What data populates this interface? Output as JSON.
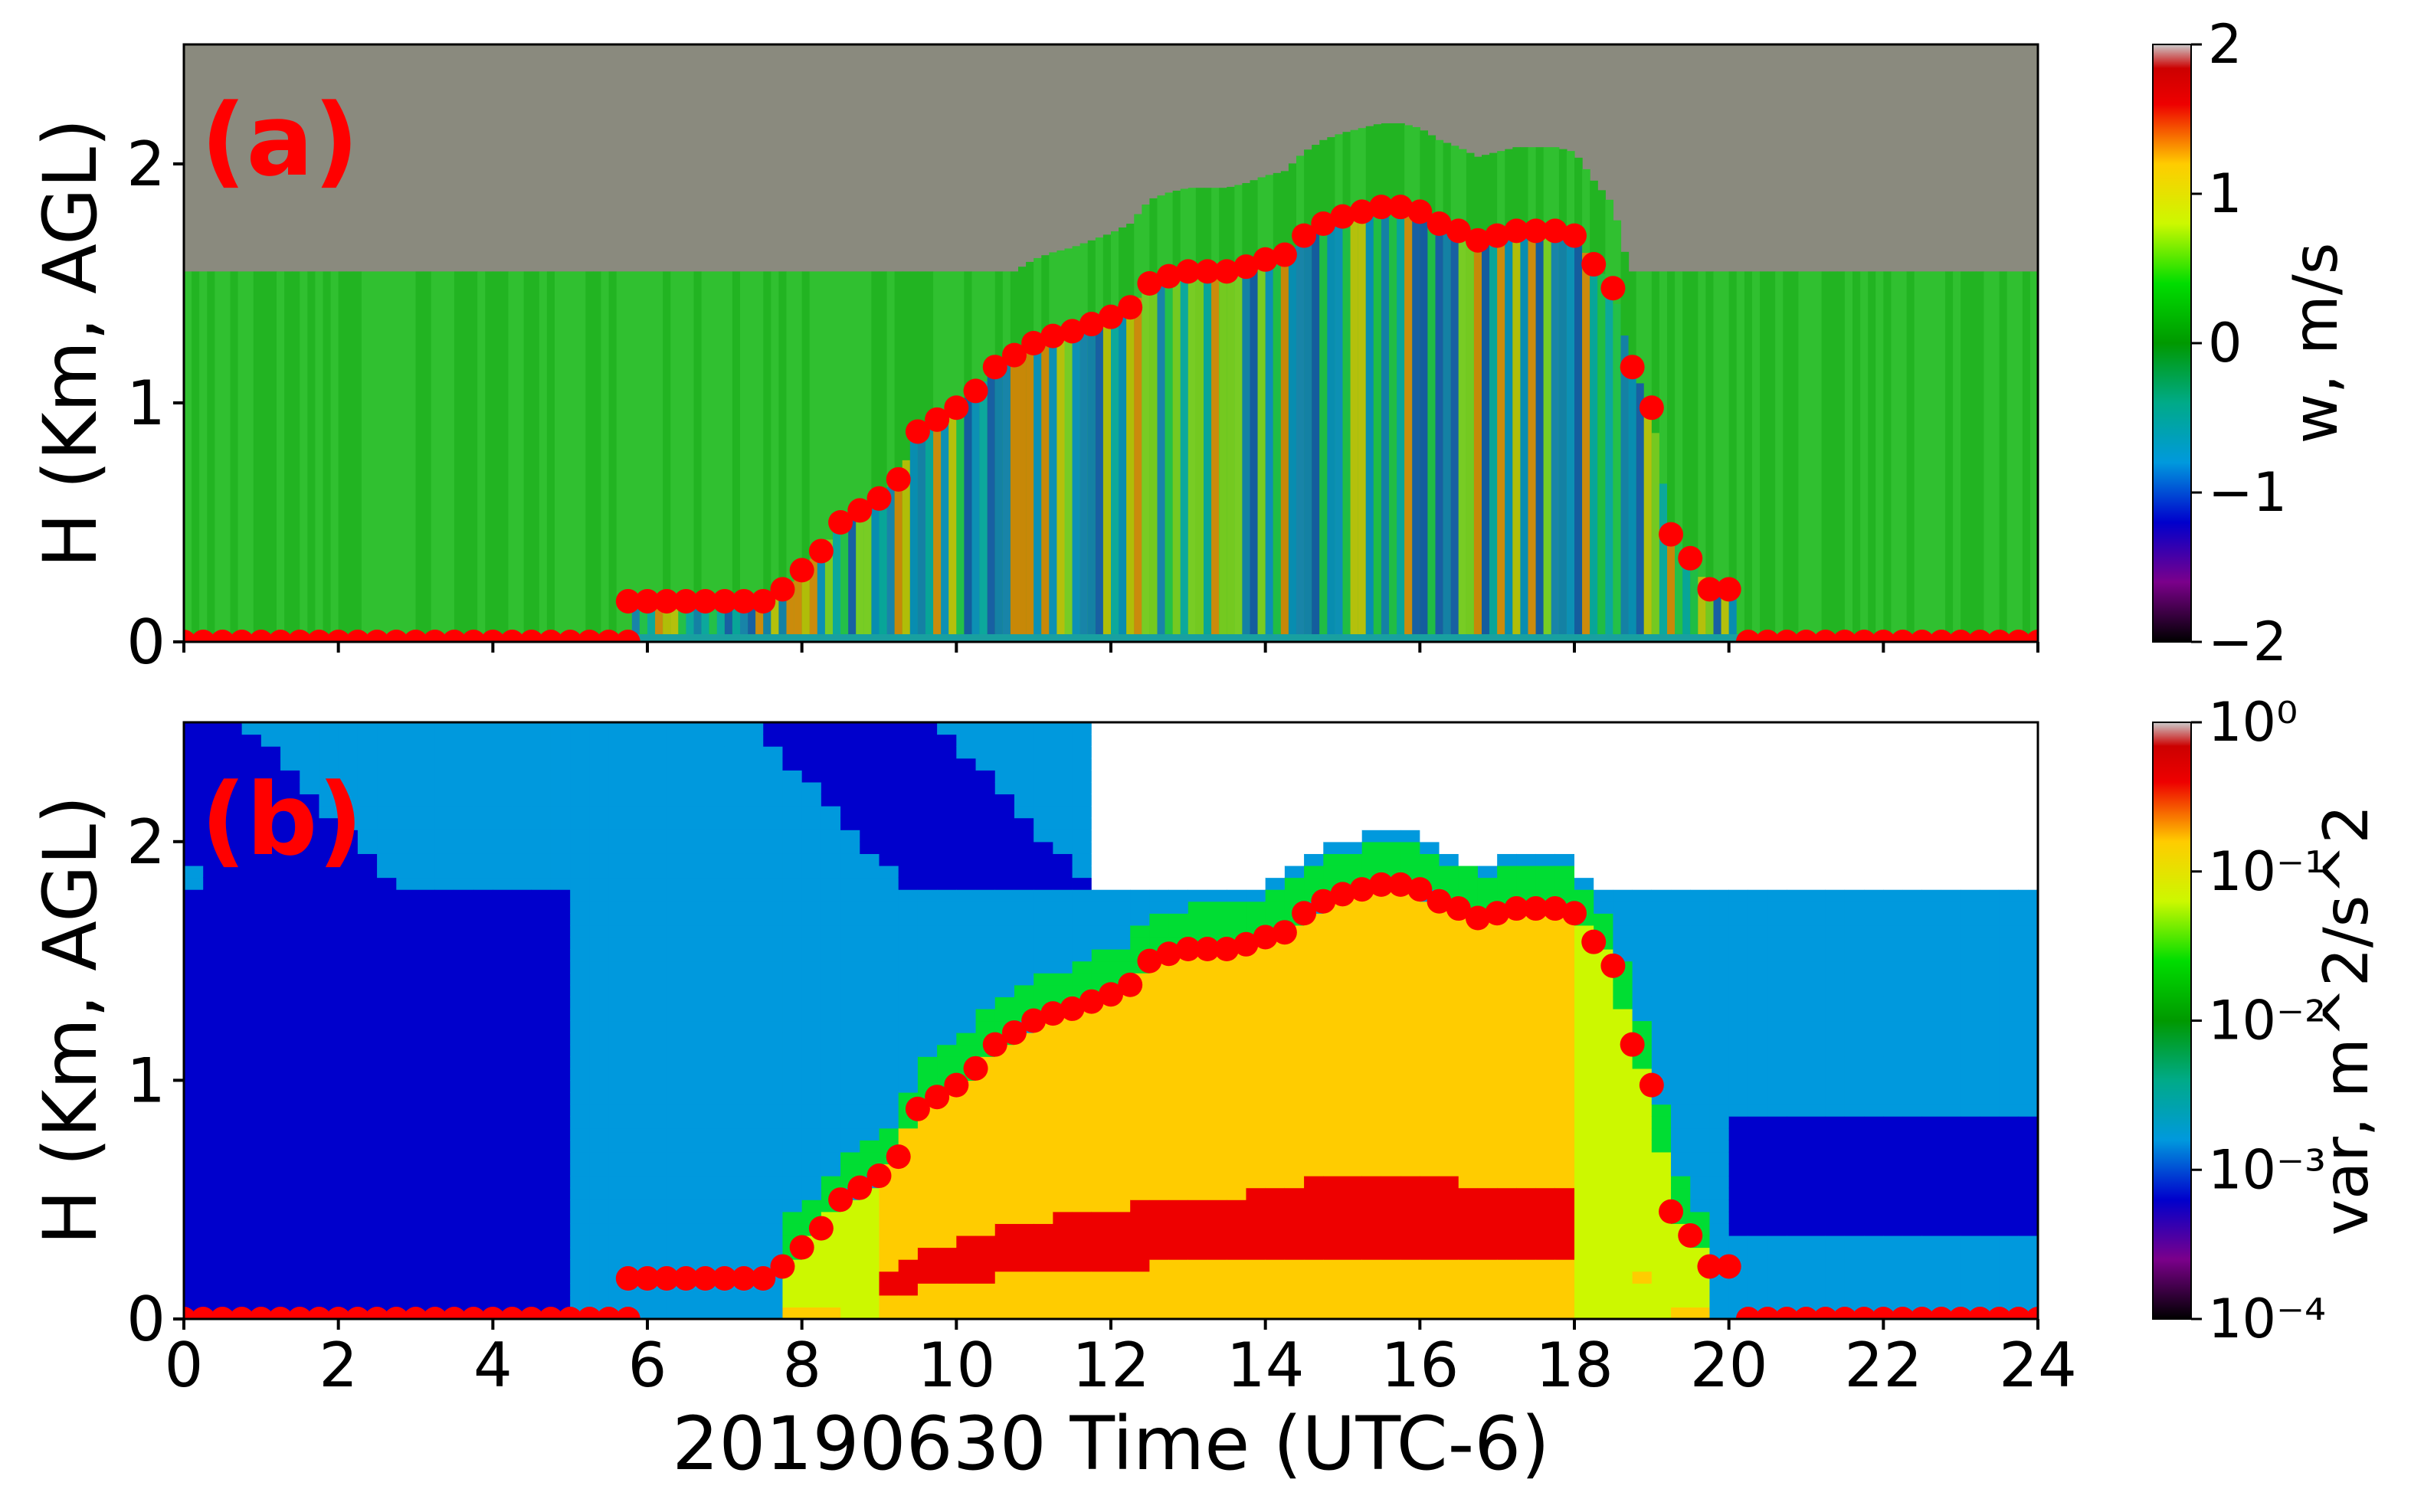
{
  "chart_data": [
    {
      "type": "heatmap",
      "panel": "(a)",
      "title": "",
      "xlabel": "",
      "ylabel": "H (Km, AGL)",
      "xlim": [
        0,
        24
      ],
      "ylim": [
        0,
        2.5
      ],
      "x_ticks": [
        0,
        2,
        4,
        6,
        8,
        10,
        12,
        14,
        16,
        18,
        20,
        22,
        24
      ],
      "y_ticks": [
        0,
        1,
        2
      ],
      "colorbar": {
        "label": "w, m/s",
        "range": [
          -2,
          2
        ],
        "ticks": [
          "−2",
          "−1",
          "0",
          "1",
          "2"
        ],
        "colormap": "nipy_spectral",
        "scale": "linear"
      },
      "grid": false
    },
    {
      "type": "heatmap",
      "panel": "(b)",
      "title": "",
      "xlabel": "20190630 Time (UTC-6)",
      "ylabel": "H (Km, AGL)",
      "xlim": [
        0,
        24
      ],
      "ylim": [
        0,
        2.5
      ],
      "x_ticks": [
        0,
        2,
        4,
        6,
        8,
        10,
        12,
        14,
        16,
        18,
        20,
        22,
        24
      ],
      "y_ticks": [
        0,
        1,
        2
      ],
      "colorbar": {
        "label": "var, m^2/s^2",
        "range": [
          0.0001,
          1
        ],
        "ticks": [
          "10⁻⁴",
          "10⁻³",
          "10⁻²",
          "10⁻¹",
          "10⁰"
        ],
        "colormap": "nipy_spectral",
        "scale": "log"
      },
      "grid": false
    }
  ],
  "overlay": {
    "marker_color": "#ff0000",
    "x": [
      0,
      0.25,
      0.5,
      0.75,
      1,
      1.25,
      1.5,
      1.75,
      2,
      2.25,
      2.5,
      2.75,
      3,
      3.25,
      3.5,
      3.75,
      4,
      4.25,
      4.5,
      4.75,
      5,
      5.25,
      5.5,
      5.75,
      5.75,
      6,
      6.25,
      6.5,
      6.75,
      7,
      7.25,
      7.5,
      7.75,
      8,
      8.25,
      8.5,
      8.75,
      9,
      9.25,
      9.5,
      9.75,
      10,
      10.25,
      10.5,
      10.75,
      11,
      11.25,
      11.5,
      11.75,
      12,
      12.25,
      12.5,
      12.75,
      13,
      13.25,
      13.5,
      13.75,
      14,
      14.25,
      14.5,
      14.75,
      15,
      15.25,
      15.5,
      15.75,
      16,
      16.25,
      16.5,
      16.75,
      17,
      17.25,
      17.5,
      17.75,
      18,
      18.25,
      18.5,
      18.75,
      19,
      19.25,
      19.5,
      19.75,
      20,
      20.25,
      20.5,
      20.75,
      21,
      21.25,
      21.5,
      21.75,
      22,
      22.25,
      22.5,
      22.75,
      23,
      23.25,
      23.5,
      23.75,
      24
    ],
    "y": [
      0,
      0,
      0,
      0,
      0,
      0,
      0,
      0,
      0,
      0,
      0,
      0,
      0,
      0,
      0,
      0,
      0,
      0,
      0,
      0,
      0,
      0,
      0,
      0,
      0.17,
      0.17,
      0.17,
      0.17,
      0.17,
      0.17,
      0.17,
      0.17,
      0.22,
      0.3,
      0.38,
      0.5,
      0.55,
      0.6,
      0.68,
      0.88,
      0.93,
      0.98,
      1.05,
      1.15,
      1.2,
      1.25,
      1.28,
      1.3,
      1.33,
      1.36,
      1.4,
      1.5,
      1.53,
      1.55,
      1.55,
      1.55,
      1.57,
      1.6,
      1.62,
      1.7,
      1.75,
      1.78,
      1.8,
      1.82,
      1.82,
      1.8,
      1.75,
      1.72,
      1.68,
      1.7,
      1.72,
      1.72,
      1.72,
      1.7,
      1.58,
      1.48,
      1.15,
      0.98,
      0.45,
      0.35,
      0.22,
      0.22,
      0,
      0,
      0,
      0,
      0,
      0,
      0,
      0,
      0,
      0,
      0,
      0,
      0,
      0,
      0,
      0
    ]
  },
  "labels": {
    "panel_a": "(a)",
    "panel_b": "(b)",
    "ylabel_a": "H (Km, AGL)",
    "ylabel_b": "H (Km, AGL)",
    "xlabel": "20190630 Time (UTC-6)",
    "cbar_a_label": "w, m/s",
    "cbar_b_label": "var, m^2/s^2",
    "x_tick_labels": [
      "0",
      "2",
      "4",
      "6",
      "8",
      "10",
      "12",
      "14",
      "16",
      "18",
      "20",
      "22",
      "24"
    ],
    "y_tick_labels": [
      "0",
      "1",
      "2"
    ]
  }
}
